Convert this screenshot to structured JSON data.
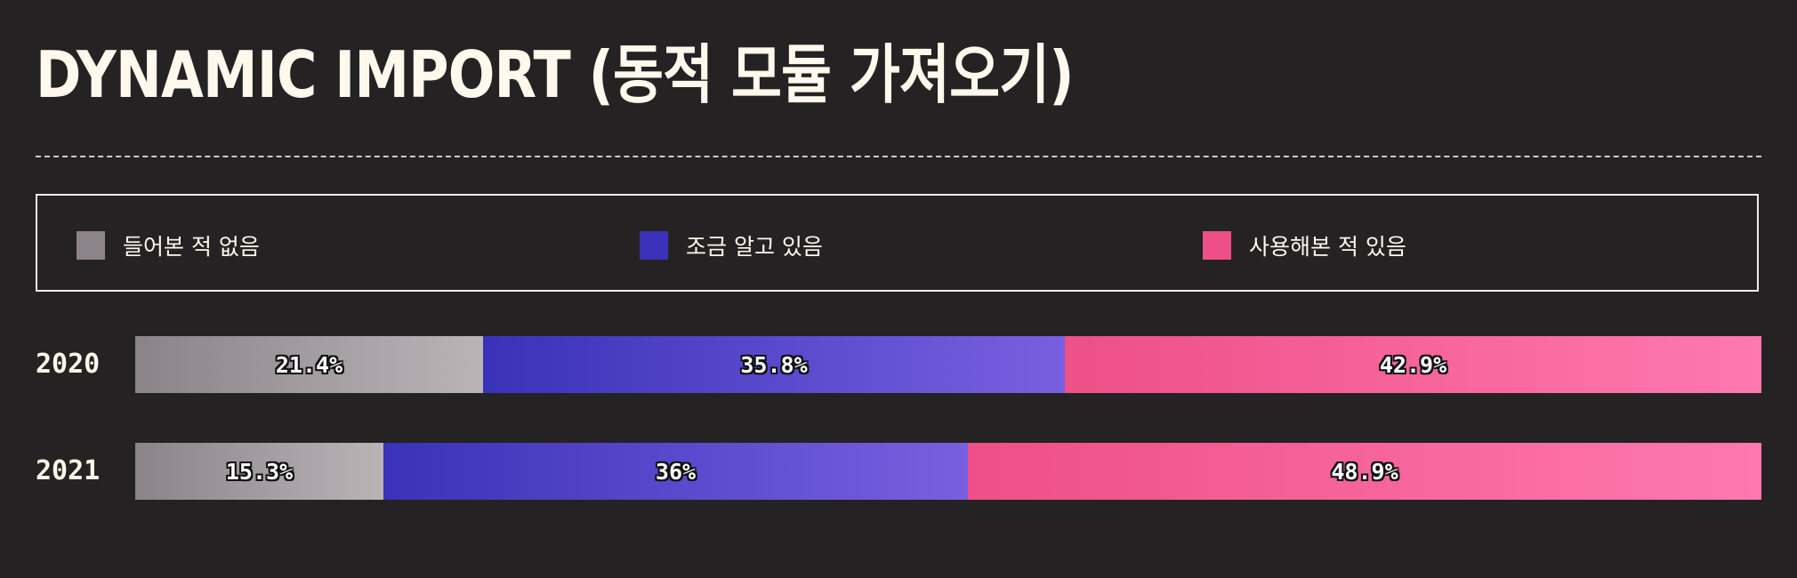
{
  "title": "DYNAMIC IMPORT (동적 모듈 가져오기)",
  "legend": [
    {
      "label": "들어본 적 없음",
      "color": "#8c8489"
    },
    {
      "label": "조금 알고 있음",
      "color": "#3a32b8"
    },
    {
      "label": "사용해본 적 있음",
      "color": "#ee4f87"
    }
  ],
  "chart_data": {
    "type": "bar",
    "orientation": "horizontal",
    "stacked": true,
    "normalized": true,
    "categories": [
      "2020",
      "2021"
    ],
    "series": [
      {
        "name": "들어본 적 없음",
        "values": [
          21.4,
          15.3
        ],
        "labels": [
          "21.4%",
          "15.3%"
        ],
        "color_start": "#8a8388",
        "color_end": "#bbb4b7"
      },
      {
        "name": "조금 알고 있음",
        "values": [
          35.8,
          36
        ],
        "labels": [
          "35.8%",
          "36%"
        ],
        "color_start": "#3a32b8",
        "color_end": "#7860e0"
      },
      {
        "name": "사용해본 적 있음",
        "values": [
          42.9,
          48.9
        ],
        "labels": [
          "42.9%",
          "48.9%"
        ],
        "color_start": "#ee4f87",
        "color_end": "#ff78b0"
      }
    ],
    "xlim": [
      0,
      100
    ],
    "legend_position": "top"
  }
}
